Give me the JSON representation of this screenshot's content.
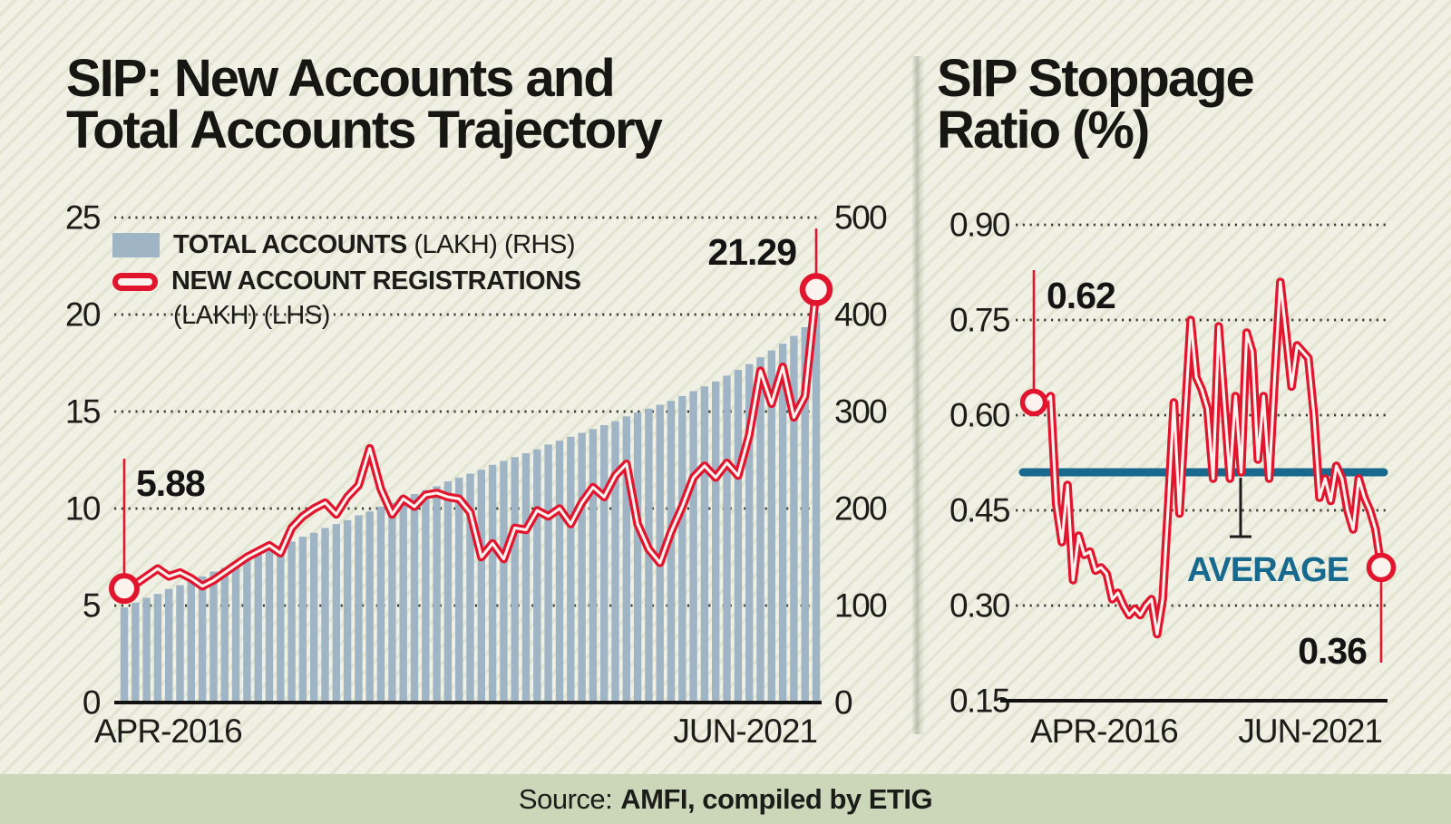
{
  "page": {
    "background_color": "#f0f1e4",
    "stripe_color": "#e1e5d1",
    "footer_band_color": "#ccd6b8",
    "ink_color": "#1c1c19",
    "red_color": "#e2152e",
    "bar_color": "#9fb5c5",
    "teal_color": "#176a8e"
  },
  "left_panel": {
    "title_line1": "SIP: New Accounts and",
    "title_line2": "Total Accounts Trajectory",
    "legend_bar_bold": "TOTAL ACCOUNTS",
    "legend_bar_rest": "(LAKH) (RHS)",
    "legend_line_bold": "NEW ACCOUNT REGISTRATIONS",
    "legend_line_rest": "(LAKH) (LHS)"
  },
  "right_panel": {
    "title_line1": "SIP Stoppage",
    "title_line2": "Ratio (%)"
  },
  "footer": {
    "prefix": "Source:",
    "bold": "AMFI, compiled by ETIG"
  },
  "chart_data": [
    {
      "type": "bar+line",
      "title": "SIP: New Accounts and Total Accounts Trajectory",
      "x_axis": {
        "start_label": "APR-2016",
        "end_label": "JUN-2021",
        "points": 63,
        "frequency": "monthly"
      },
      "left_axis": {
        "title": "NEW ACCOUNT REGISTRATIONS (LAKH) (LHS)",
        "range": [
          0,
          25
        ],
        "tick_values": [
          0,
          5,
          10,
          15,
          20,
          25
        ],
        "tick_labels": [
          "0",
          "5",
          "10",
          "15",
          "20",
          "25"
        ]
      },
      "right_axis": {
        "title": "TOTAL ACCOUNTS (LAKH) (RHS)",
        "range": [
          0,
          500
        ],
        "tick_values": [
          0,
          100,
          200,
          300,
          400,
          500
        ],
        "tick_labels": [
          "0",
          "100",
          "200",
          "300",
          "400",
          "500"
        ]
      },
      "grid": "dotted-horizontal",
      "series": [
        {
          "name": "TOTAL ACCOUNTS (LAKH) (RHS)",
          "type": "bar",
          "axis": "right",
          "values": [
            98,
            103,
            108,
            112,
            117,
            121,
            126,
            130,
            135,
            139,
            144,
            148,
            153,
            157,
            162,
            166,
            171,
            175,
            180,
            184,
            188,
            193,
            197,
            202,
            206,
            210,
            215,
            219,
            223,
            228,
            232,
            236,
            240,
            245,
            249,
            253,
            257,
            261,
            266,
            270,
            274,
            278,
            282,
            286,
            290,
            295,
            299,
            303,
            307,
            311,
            316,
            321,
            326,
            331,
            337,
            343,
            349,
            356,
            363,
            370,
            378,
            387,
            402
          ]
        },
        {
          "name": "NEW ACCOUNT REGISTRATIONS (LAKH) (LHS)",
          "type": "line",
          "axis": "left",
          "values": [
            5.88,
            6.1,
            6.5,
            6.9,
            6.5,
            6.7,
            6.4,
            6.0,
            6.3,
            6.7,
            7.1,
            7.5,
            7.8,
            8.1,
            7.7,
            9.0,
            9.6,
            10.0,
            10.3,
            9.7,
            10.6,
            11.2,
            13.1,
            11.0,
            9.7,
            10.5,
            10.1,
            10.7,
            10.8,
            10.6,
            10.5,
            9.8,
            7.5,
            8.2,
            7.4,
            9.0,
            8.9,
            9.9,
            9.6,
            10.0,
            9.2,
            10.3,
            11.1,
            10.6,
            11.7,
            12.3,
            9.2,
            7.9,
            7.2,
            8.8,
            10.1,
            11.6,
            12.2,
            11.6,
            12.35,
            11.7,
            13.8,
            17.1,
            15.4,
            17.3,
            14.7,
            15.8,
            21.29
          ]
        }
      ],
      "annotations": [
        {
          "text": "5.88",
          "series": "NEW ACCOUNT REGISTRATIONS (LAKH) (LHS)",
          "point_index": 0
        },
        {
          "text": "21.29",
          "series": "NEW ACCOUNT REGISTRATIONS (LAKH) (LHS)",
          "point_index": 62
        }
      ]
    },
    {
      "type": "line",
      "title": "SIP Stoppage Ratio (%)",
      "x_axis": {
        "start_label": "APR-2016",
        "end_label": "JUN-2021",
        "points": 63,
        "frequency": "monthly"
      },
      "y_axis": {
        "range": [
          0.15,
          0.9
        ],
        "tick_values": [
          0.15,
          0.3,
          0.45,
          0.6,
          0.75,
          0.9
        ],
        "tick_labels": [
          "0.15",
          "0.30",
          "0.45",
          "0.60",
          "0.75",
          "0.90"
        ]
      },
      "grid": "dotted-horizontal",
      "series": [
        {
          "name": "SIP STOPPAGE RATIO (%)",
          "type": "line",
          "values": [
            0.62,
            0.615,
            0.62,
            0.63,
            0.46,
            0.4,
            0.49,
            0.34,
            0.41,
            0.38,
            0.385,
            0.355,
            0.36,
            0.35,
            0.31,
            0.32,
            0.3,
            0.285,
            0.295,
            0.285,
            0.3,
            0.31,
            0.255,
            0.31,
            0.46,
            0.62,
            0.445,
            0.6,
            0.75,
            0.66,
            0.64,
            0.61,
            0.5,
            0.74,
            0.62,
            0.5,
            0.63,
            0.51,
            0.73,
            0.7,
            0.53,
            0.63,
            0.5,
            0.66,
            0.81,
            0.73,
            0.645,
            0.71,
            0.7,
            0.69,
            0.6,
            0.47,
            0.5,
            0.465,
            0.52,
            0.5,
            0.45,
            0.42,
            0.5,
            0.47,
            0.45,
            0.42,
            0.36
          ]
        }
      ],
      "average_line": {
        "label": "AVERAGE",
        "value": 0.51
      },
      "annotations": [
        {
          "text": "0.62",
          "series": "SIP STOPPAGE RATIO (%)",
          "point_index": 0
        },
        {
          "text": "0.36",
          "series": "SIP STOPPAGE RATIO (%)",
          "point_index": 62
        }
      ]
    }
  ]
}
